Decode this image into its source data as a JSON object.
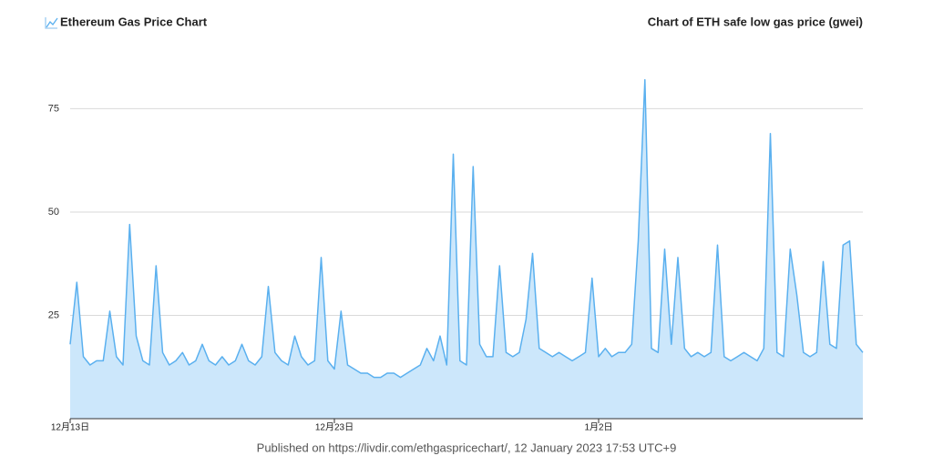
{
  "header": {
    "title": "Ethereum Gas Price Chart"
  },
  "chart_data": {
    "type": "area",
    "title": "Chart of ETH safe low gas price (gwei)",
    "categories": [
      "12月13日",
      null,
      null,
      null,
      null,
      null,
      null,
      null,
      null,
      null,
      null,
      null,
      null,
      null,
      null,
      null,
      null,
      null,
      null,
      null,
      null,
      null,
      null,
      null,
      null,
      null,
      null,
      null,
      null,
      null,
      null,
      null,
      null,
      null,
      null,
      null,
      null,
      null,
      null,
      null,
      "12月23日",
      null,
      null,
      null,
      null,
      null,
      null,
      null,
      null,
      null,
      null,
      null,
      null,
      null,
      null,
      null,
      null,
      null,
      null,
      null,
      null,
      null,
      null,
      null,
      null,
      null,
      null,
      null,
      null,
      null,
      null,
      null,
      null,
      null,
      null,
      null,
      null,
      null,
      null,
      null,
      "1月2日",
      null,
      null,
      null,
      null,
      null,
      null,
      null,
      null,
      null,
      null,
      null,
      null,
      null,
      null,
      null,
      null,
      null,
      null,
      null,
      null,
      null,
      null,
      null,
      null,
      null,
      null,
      null,
      null,
      null,
      null,
      null,
      null,
      null,
      null,
      null,
      null,
      null,
      null,
      null,
      null
    ],
    "series": [
      {
        "name": "safe low",
        "color": "#5ab0ef",
        "fill": "#cce7fb",
        "values": [
          18,
          33,
          15,
          13,
          14,
          14,
          26,
          15,
          13,
          47,
          20,
          14,
          13,
          37,
          16,
          13,
          14,
          16,
          13,
          14,
          18,
          14,
          13,
          15,
          13,
          14,
          18,
          14,
          13,
          15,
          32,
          16,
          14,
          13,
          20,
          15,
          13,
          14,
          39,
          14,
          12,
          26,
          13,
          12,
          11,
          11,
          10,
          10,
          11,
          11,
          10,
          11,
          12,
          13,
          17,
          14,
          20,
          13,
          64,
          14,
          13,
          61,
          18,
          15,
          15,
          37,
          16,
          15,
          16,
          24,
          40,
          17,
          16,
          15,
          16,
          15,
          14,
          15,
          16,
          34,
          15,
          17,
          15,
          16,
          16,
          18,
          43,
          82,
          17,
          16,
          41,
          18,
          39,
          17,
          15,
          16,
          15,
          16,
          42,
          15,
          14,
          15,
          16,
          15,
          14,
          17,
          69,
          16,
          15,
          41,
          30,
          16,
          15,
          16,
          38,
          18,
          17,
          42,
          43,
          18,
          16
        ]
      }
    ],
    "ylim": [
      0,
      85
    ],
    "yticks": [
      25,
      50,
      75
    ],
    "grid": true
  },
  "footer": {
    "text": "Published on https://livdir.com/ethgaspricechart/, 12 January 2023 17:53 UTC+9"
  }
}
